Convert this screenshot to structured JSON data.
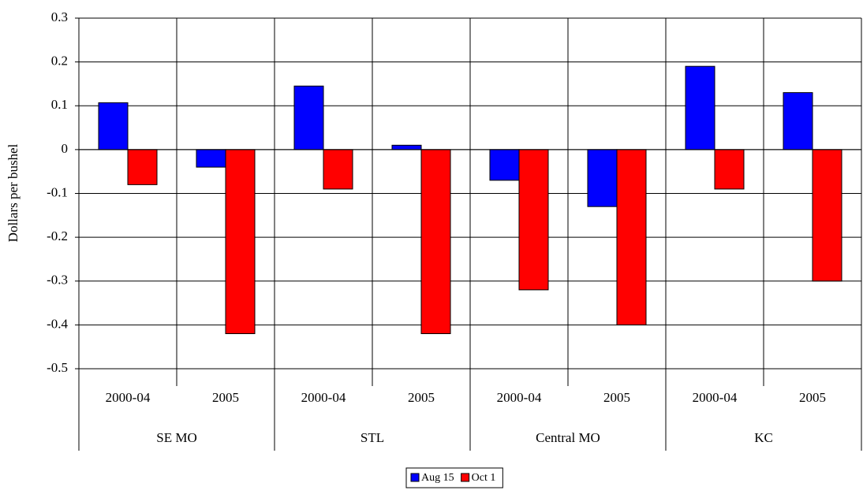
{
  "chart_data": {
    "type": "bar",
    "y_label": "Dollars per bushel",
    "categories": [
      "2000-04",
      "2005",
      "2000-04",
      "2005",
      "2000-04",
      "2005",
      "2000-04",
      "2005"
    ],
    "category_groups": [
      "SE MO",
      "STL",
      "Central MO",
      "KC"
    ],
    "series": [
      {
        "name": "Aug 15",
        "color": "#0000ff",
        "values": [
          0.107,
          -0.04,
          0.145,
          0.01,
          -0.07,
          -0.13,
          0.19,
          0.13
        ]
      },
      {
        "name": "Oct 1",
        "color": "#ff0000",
        "values": [
          -0.08,
          -0.42,
          -0.09,
          -0.42,
          -0.32,
          -0.4,
          -0.09,
          -0.3
        ]
      }
    ],
    "ylim": [
      -0.5,
      0.3
    ],
    "yticks": [
      -0.5,
      -0.4,
      -0.3,
      -0.2,
      -0.1,
      0,
      0.1,
      0.2,
      0.3
    ],
    "grid": true
  }
}
